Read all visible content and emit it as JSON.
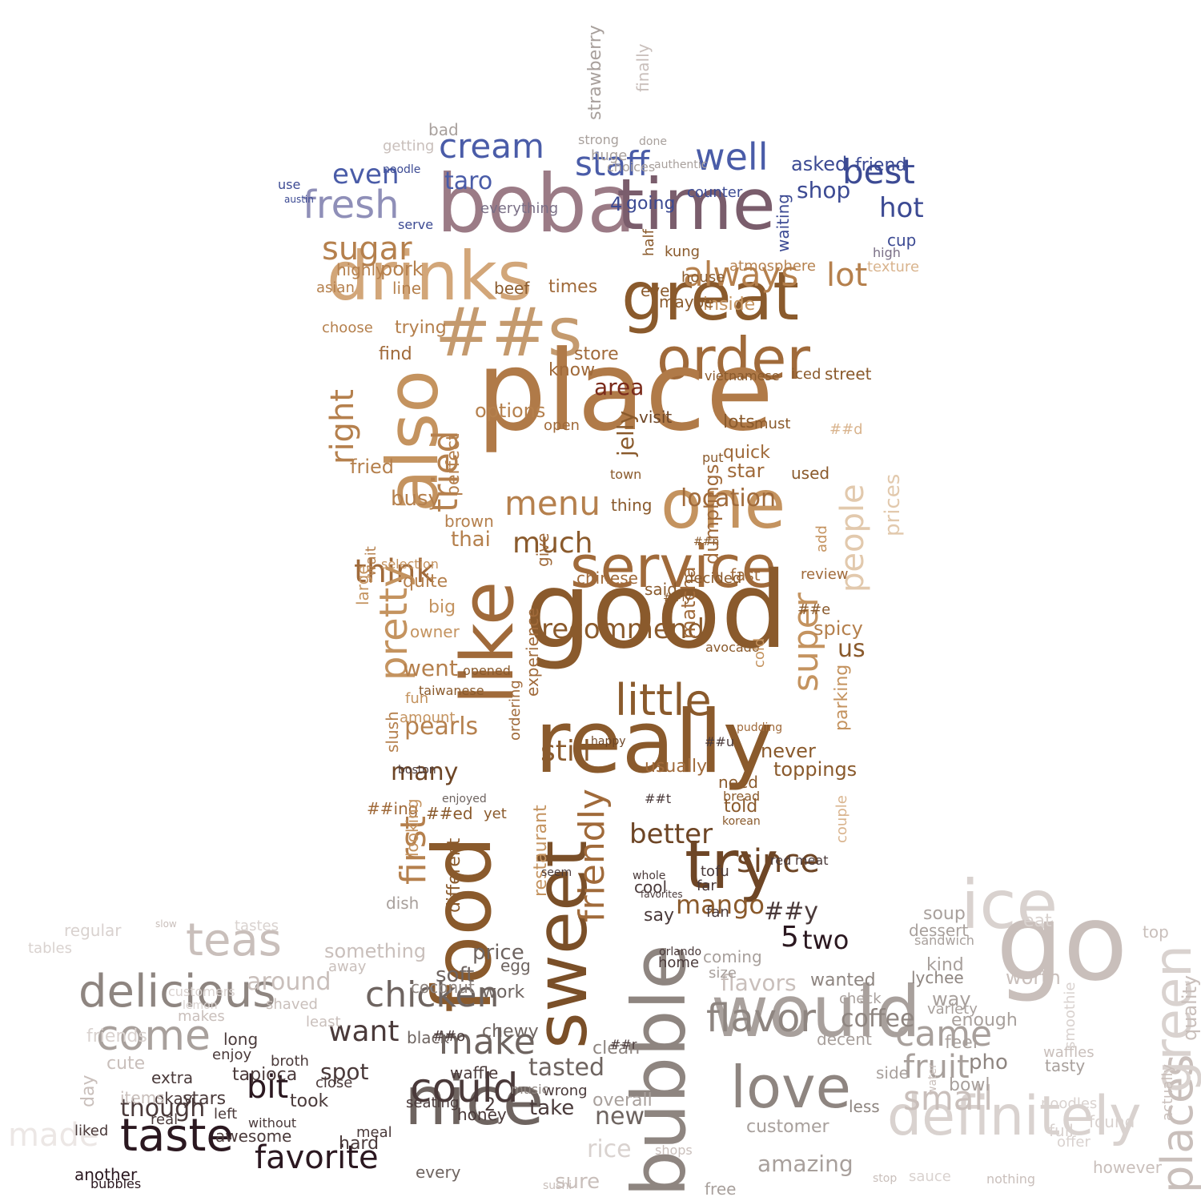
{
  "cloud": {
    "title": "",
    "palette": {
      "lid": "#3c4a93",
      "lid_light": "#8fa0d8",
      "cup_dark": "#8a5a2c",
      "cup_mid": "#b5804d",
      "cup_light": "#d9b48e",
      "saucer_dark": "#2b1820",
      "saucer_mid": "#8e8580",
      "saucer_light": "#d9d2cf",
      "accent_maroon": "#7a2a1a",
      "boba_purple": "#9b7b86"
    },
    "words": [
      {
        "t": "boba",
        "c": "#9b7b86"
      },
      {
        "t": "time",
        "c": "#7a5d6c"
      },
      {
        "t": "cream",
        "c": "#4a5ca8"
      },
      {
        "t": "even",
        "c": "#4a5ca8"
      },
      {
        "t": "taro",
        "c": "#4a5ca8"
      },
      {
        "t": "staff",
        "c": "#4a5ca8"
      },
      {
        "t": "well",
        "c": "#4a5ca8"
      },
      {
        "t": "best",
        "c": "#3c4a93"
      },
      {
        "t": "shop",
        "c": "#3c4a93"
      },
      {
        "t": "hot",
        "c": "#3c4a93"
      },
      {
        "t": "fresh",
        "c": "#8f8fb8"
      },
      {
        "t": "asked",
        "c": "#3c4a93"
      },
      {
        "t": "friend",
        "c": "#3c4a93"
      },
      {
        "t": "going",
        "c": "#3c4a93"
      },
      {
        "t": "counter",
        "c": "#3c4a93"
      },
      {
        "t": "serve",
        "c": "#3c4a93"
      },
      {
        "t": "use",
        "c": "#3c4a93"
      },
      {
        "t": "austin",
        "c": "#3c4a93"
      },
      {
        "t": "noodle",
        "c": "#3c4a93"
      },
      {
        "t": "everything",
        "c": "#7a6f86"
      },
      {
        "t": "drinks",
        "c": "#d2a679"
      },
      {
        "t": "great",
        "c": "#8a5a2c"
      },
      {
        "t": "sugar",
        "c": "#b5804d"
      },
      {
        "t": "always",
        "c": "#b5804d"
      },
      {
        "t": "lot",
        "c": "#b5804d"
      },
      {
        "t": "##s",
        "c": "#c49a6e"
      },
      {
        "t": "order",
        "c": "#a06a3a"
      },
      {
        "t": "also",
        "c": "#c4935f"
      },
      {
        "t": "place",
        "c": "#b07a48"
      },
      {
        "t": "area",
        "c": "#7a2a1a"
      },
      {
        "t": "tried",
        "c": "#b5804d"
      },
      {
        "t": "right",
        "c": "#b5804d"
      },
      {
        "t": "menu",
        "c": "#b5804d"
      },
      {
        "t": "much",
        "c": "#8a5a2c"
      },
      {
        "t": "one",
        "c": "#c4935f"
      },
      {
        "t": "people",
        "c": "#e2c9ad"
      },
      {
        "t": "location",
        "c": "#a06a3a"
      },
      {
        "t": "think",
        "c": "#a06a3a"
      },
      {
        "t": "service",
        "c": "#a06a3a"
      },
      {
        "t": "pretty",
        "c": "#c4935f"
      },
      {
        "t": "like",
        "c": "#a06a3a"
      },
      {
        "t": "recommend",
        "c": "#8a5a2c"
      },
      {
        "t": "good",
        "c": "#8a5a2c"
      },
      {
        "t": "super",
        "c": "#c4935f"
      },
      {
        "t": "went",
        "c": "#b5804d"
      },
      {
        "t": "pearls",
        "c": "#b5804d"
      },
      {
        "t": "little",
        "c": "#8a5a2c"
      },
      {
        "t": "still",
        "c": "#8a5a2c"
      },
      {
        "t": "really",
        "c": "#8a5a2c"
      },
      {
        "t": "food",
        "c": "#8a5a2c"
      },
      {
        "t": "sweet",
        "c": "#7a4f28"
      },
      {
        "t": "try",
        "c": "#6e4626"
      },
      {
        "t": "since",
        "c": "#6e4626"
      },
      {
        "t": "better",
        "c": "#6e4626"
      },
      {
        "t": "first",
        "c": "#b5804d"
      },
      {
        "t": "friendly",
        "c": "#a06a3a"
      },
      {
        "t": "bubble",
        "c": "#8e8580"
      },
      {
        "t": "ice",
        "c": "#d9d2cf"
      },
      {
        "t": "go",
        "c": "#c9bfbb"
      },
      {
        "t": "would",
        "c": "#a8a09c"
      },
      {
        "t": "love",
        "c": "#8e8580"
      },
      {
        "t": "delicious",
        "c": "#8e8580"
      },
      {
        "t": "chicken",
        "c": "#6e6460"
      },
      {
        "t": "come",
        "c": "#a8a09c"
      },
      {
        "t": "teas",
        "c": "#c9bfbb"
      },
      {
        "t": "around",
        "c": "#c9bfbb"
      },
      {
        "t": "make",
        "c": "#6e6460"
      },
      {
        "t": "nice",
        "c": "#6e6460"
      },
      {
        "t": "could",
        "c": "#4a3a3a"
      },
      {
        "t": "want",
        "c": "#4a3a3a"
      },
      {
        "t": "taste",
        "c": "#2b1820"
      },
      {
        "t": "favorite",
        "c": "#2b1820"
      },
      {
        "t": "bit",
        "c": "#2b1820"
      },
      {
        "t": "definitely",
        "c": "#d9d2cf"
      },
      {
        "t": "places",
        "c": "#c9bfbb"
      },
      {
        "t": "small",
        "c": "#c9bfbb"
      },
      {
        "t": "came",
        "c": "#a8a09c"
      },
      {
        "t": "fruit",
        "c": "#a8a09c"
      },
      {
        "t": "green",
        "c": "#d9d2cf"
      },
      {
        "t": "flavor",
        "c": "#8e8580"
      },
      {
        "t": "coffee",
        "c": "#8e8580"
      },
      {
        "t": "mango",
        "c": "#8a5a2c"
      },
      {
        "t": "5",
        "c": "#2b1820"
      },
      {
        "t": "two",
        "c": "#2b1820"
      },
      {
        "t": "##y",
        "c": "#4a3a3a"
      },
      {
        "t": "new",
        "c": "#6e6460"
      },
      {
        "t": "price",
        "c": "#6e6460"
      },
      {
        "t": "soft",
        "c": "#6e6460"
      },
      {
        "t": "spot",
        "c": "#4a3a3a"
      },
      {
        "t": "tasted",
        "c": "#6e6460"
      },
      {
        "t": "though",
        "c": "#4a3a3a"
      },
      {
        "t": "stars",
        "c": "#4a3a3a"
      },
      {
        "t": "made",
        "c": "#ece7e5"
      },
      {
        "t": "amazing",
        "c": "#a8a09c"
      },
      {
        "t": "customer",
        "c": "#a8a09c"
      },
      {
        "t": "flavors",
        "c": "#c9bfbb"
      },
      {
        "t": "something",
        "c": "#c9bfbb"
      },
      {
        "t": "tapioca",
        "c": "#4a3a3a"
      },
      {
        "t": "take",
        "c": "#4a3a3a"
      },
      {
        "t": "wanted",
        "c": "#8e8580"
      },
      {
        "t": "worth",
        "c": "#c9bfbb"
      },
      {
        "t": "enough",
        "c": "#a8a09c"
      },
      {
        "t": "feel",
        "c": "#a8a09c"
      },
      {
        "t": "pho",
        "c": "#8e8580"
      },
      {
        "t": "quality",
        "c": "#c9bfbb"
      },
      {
        "t": "thai",
        "c": "#b5804d"
      },
      {
        "t": "pork",
        "c": "#b5804d"
      },
      {
        "t": "fried",
        "c": "#b5804d"
      },
      {
        "t": "busy",
        "c": "#b5804d"
      },
      {
        "t": "jelly",
        "c": "#8a5a2c"
      },
      {
        "t": "star",
        "c": "#a06a3a"
      },
      {
        "t": "quick",
        "c": "#a06a3a"
      },
      {
        "t": "prices",
        "c": "#e2c9ad"
      },
      {
        "t": "options",
        "c": "#b5804d"
      },
      {
        "t": "dumplings",
        "c": "#a06a3a"
      },
      {
        "t": "matcha",
        "c": "#a06a3a"
      },
      {
        "t": "spicy",
        "c": "#b5804d"
      },
      {
        "t": "us",
        "c": "#8a5a2c"
      },
      {
        "t": "parking",
        "c": "#c4935f"
      },
      {
        "t": "toppings",
        "c": "#8a5a2c"
      },
      {
        "t": "never",
        "c": "#8a5a2c"
      },
      {
        "t": "many",
        "c": "#6e4626"
      },
      {
        "t": "told",
        "c": "#8a5a2c"
      },
      {
        "t": "need",
        "c": "#8a5a2c"
      },
      {
        "t": "usually",
        "c": "#a06a3a"
      },
      {
        "t": "chinese",
        "c": "#a06a3a"
      },
      {
        "t": "fast",
        "c": "#a06a3a"
      },
      {
        "t": "review",
        "c": "#a06a3a"
      },
      {
        "t": "times",
        "c": "#a06a3a"
      },
      {
        "t": "find",
        "c": "#a06a3a"
      },
      {
        "t": "know",
        "c": "#a06a3a"
      },
      {
        "t": "store",
        "c": "#a06a3a"
      },
      {
        "t": "beef",
        "c": "#8a5a2c"
      },
      {
        "t": "line",
        "c": "#b5804d"
      },
      {
        "t": "trying",
        "c": "#b5804d"
      },
      {
        "t": "highly",
        "c": "#b5804d"
      },
      {
        "t": "choose",
        "c": "#b5804d"
      },
      {
        "t": "inside",
        "c": "#c4935f"
      },
      {
        "t": "maybe",
        "c": "#8a5a2c"
      },
      {
        "t": "said",
        "c": "#8a5a2c"
      },
      {
        "t": "quite",
        "c": "#b5804d"
      },
      {
        "t": "big",
        "c": "#c4935f"
      },
      {
        "t": "owner",
        "c": "#c4935f"
      },
      {
        "t": "fun",
        "c": "#c4935f"
      },
      {
        "t": "amount",
        "c": "#c4935f"
      },
      {
        "t": "brown",
        "c": "#b5804d"
      },
      {
        "t": "used",
        "c": "#8a5a2c"
      },
      {
        "t": "visit",
        "c": "#6e4626"
      },
      {
        "t": "ever",
        "c": "#8a5a2c"
      },
      {
        "t": "house",
        "c": "#8a5a2c"
      },
      {
        "t": "atmosphere",
        "c": "#b5804d"
      },
      {
        "t": "texture",
        "c": "#d9b48e"
      },
      {
        "t": "cup",
        "c": "#3c4a93"
      },
      {
        "t": "high",
        "c": "#7a6f86"
      },
      {
        "t": "kung",
        "c": "#8a5a2c"
      },
      {
        "t": "bad",
        "c": "#a8a09c"
      },
      {
        "t": "getting",
        "c": "#c9bfbb"
      },
      {
        "t": "huge",
        "c": "#a8a09c"
      },
      {
        "t": "choices",
        "c": "#a8a09c"
      },
      {
        "t": "authentic",
        "c": "#a8a09c"
      },
      {
        "t": "strawberry",
        "c": "#a8a09c"
      },
      {
        "t": "finally",
        "c": "#c9bfbb"
      },
      {
        "t": "strong",
        "c": "#a8a09c"
      },
      {
        "t": "done",
        "c": "#a8a09c"
      },
      {
        "t": "tofu",
        "c": "#4a3a3a"
      },
      {
        "t": "far",
        "c": "#4a3a3a"
      },
      {
        "t": "cool",
        "c": "#4a3a3a"
      },
      {
        "t": "say",
        "c": "#4a3a3a"
      },
      {
        "t": "fan",
        "c": "#4a3a3a"
      },
      {
        "t": "hard",
        "c": "#4a3a3a"
      },
      {
        "t": "left",
        "c": "#4a3a3a"
      },
      {
        "t": "took",
        "c": "#4a3a3a"
      },
      {
        "t": "okay",
        "c": "#4a3a3a"
      },
      {
        "t": "extra",
        "c": "#4a3a3a"
      },
      {
        "t": "another",
        "c": "#2b1820"
      },
      {
        "t": "bubbles",
        "c": "#2b1820"
      },
      {
        "t": "awesome",
        "c": "#4a3a3a"
      },
      {
        "t": "every",
        "c": "#6e6460"
      },
      {
        "t": "sure",
        "c": "#c9bfbb"
      },
      {
        "t": "rice",
        "c": "#d9d2cf"
      },
      {
        "t": "overall",
        "c": "#a8a09c"
      },
      {
        "t": "free",
        "c": "#a8a09c"
      },
      {
        "t": "soup",
        "c": "#a8a09c"
      },
      {
        "t": "dessert",
        "c": "#a8a09c"
      },
      {
        "t": "lychee",
        "c": "#8e8580"
      },
      {
        "t": "kind",
        "c": "#a8a09c"
      },
      {
        "t": "way",
        "c": "#a8a09c"
      },
      {
        "t": "less",
        "c": "#8e8580"
      },
      {
        "t": "bowl",
        "c": "#a8a09c"
      },
      {
        "t": "tasty",
        "c": "#a8a09c"
      },
      {
        "t": "side",
        "c": "#a8a09c"
      },
      {
        "t": "check",
        "c": "#a8a09c"
      },
      {
        "t": "decent",
        "c": "#a8a09c"
      },
      {
        "t": "waffle",
        "c": "#4a3a3a"
      },
      {
        "t": "honey",
        "c": "#4a3a3a"
      },
      {
        "t": "black",
        "c": "#6e6460"
      },
      {
        "t": "chewy",
        "c": "#6e6460"
      },
      {
        "t": "work",
        "c": "#6e6460"
      },
      {
        "t": "coconut",
        "c": "#8e8580"
      },
      {
        "t": "clean",
        "c": "#8e8580"
      },
      {
        "t": "seating",
        "c": "#4a3a3a"
      },
      {
        "t": "close",
        "c": "#4a3a3a"
      },
      {
        "t": "broth",
        "c": "#4a3a3a"
      },
      {
        "t": "long",
        "c": "#4a3a3a"
      },
      {
        "t": "enjoy",
        "c": "#4a3a3a"
      },
      {
        "t": "cute",
        "c": "#c9bfbb"
      },
      {
        "t": "friends",
        "c": "#d9d2cf"
      },
      {
        "t": "day",
        "c": "#c9bfbb"
      },
      {
        "t": "items",
        "c": "#c9bfbb"
      },
      {
        "t": "regular",
        "c": "#d9d2cf"
      },
      {
        "t": "tables",
        "c": "#d9d2cf"
      },
      {
        "t": "customers",
        "c": "#d9d2cf"
      },
      {
        "t": "tastes",
        "c": "#d9d2cf"
      },
      {
        "t": "wrong",
        "c": "#4a3a3a"
      },
      {
        "t": "coming",
        "c": "#a8a09c"
      },
      {
        "t": "size",
        "c": "#a8a09c"
      },
      {
        "t": "home",
        "c": "#4a3a3a"
      },
      {
        "t": "orlando",
        "c": "#4a3a3a"
      },
      {
        "t": "boston",
        "c": "#4a3a3a"
      },
      {
        "t": "enjoyed",
        "c": "#6e6460"
      },
      {
        "t": "##ed",
        "c": "#8a5a2c"
      },
      {
        "t": "##ing",
        "c": "#a06a3a"
      },
      {
        "t": "yet",
        "c": "#8a5a2c"
      },
      {
        "t": "looking",
        "c": "#c4935f"
      },
      {
        "t": "restaurant",
        "c": "#c4935f"
      },
      {
        "t": "different",
        "c": "#8a5a2c"
      },
      {
        "t": "open",
        "c": "#a06a3a"
      },
      {
        "t": "perfect",
        "c": "#b5804d"
      },
      {
        "t": "ordering",
        "c": "#a06a3a"
      },
      {
        "t": "experience",
        "c": "#a06a3a"
      },
      {
        "t": "give",
        "c": "#a06a3a"
      },
      {
        "t": "##d",
        "c": "#d9b48e"
      },
      {
        "t": "lots",
        "c": "#8a5a2c"
      },
      {
        "t": "must",
        "c": "#8a5a2c"
      },
      {
        "t": "street",
        "c": "#8a5a2c"
      },
      {
        "t": "iced",
        "c": "#8a5a2c"
      },
      {
        "t": "vietnamese",
        "c": "#8a5a2c"
      },
      {
        "t": "add",
        "c": "#c4935f"
      },
      {
        "t": "decided",
        "c": "#8a5a2c"
      },
      {
        "t": "thing",
        "c": "#8a5a2c"
      },
      {
        "t": "town",
        "c": "#8a5a2c"
      },
      {
        "t": "put",
        "c": "#8a5a2c"
      },
      {
        "t": "waiting",
        "c": "#3c4a93"
      },
      {
        "t": "half",
        "c": "#8a5a2c"
      },
      {
        "t": "4",
        "c": "#3c4a93"
      },
      {
        "t": "##e",
        "c": "#8a5a2c"
      },
      {
        "t": "##ly",
        "c": "#8a5a2c"
      },
      {
        "t": "##o",
        "c": "#4a3a3a"
      },
      {
        "t": "##r",
        "c": "#4a3a3a"
      },
      {
        "t": "##t",
        "c": "#4a3a3a"
      },
      {
        "t": "##u",
        "c": "#4a3a3a"
      },
      {
        "t": "##n",
        "c": "#8a5a2c"
      },
      {
        "t": "red",
        "c": "#4a3a3a"
      },
      {
        "t": "meat",
        "c": "#4a3a3a"
      },
      {
        "t": "3",
        "c": "#a8a09c"
      },
      {
        "t": "2",
        "c": "#4a3a3a"
      },
      {
        "t": "slow",
        "c": "#c9bfbb"
      },
      {
        "t": "top",
        "c": "#c9bfbb"
      },
      {
        "t": "eat",
        "c": "#d9d2cf"
      },
      {
        "t": "waffles",
        "c": "#c9bfbb"
      },
      {
        "t": "smoothie",
        "c": "#d9d2cf"
      },
      {
        "t": "noodles",
        "c": "#d9d2cf"
      },
      {
        "t": "found",
        "c": "#d9d2cf"
      },
      {
        "t": "actually",
        "c": "#c9bfbb"
      },
      {
        "t": "water",
        "c": "#c9bfbb"
      },
      {
        "t": "however",
        "c": "#c9bfbb"
      },
      {
        "t": "stop",
        "c": "#c9bfbb"
      },
      {
        "t": "sauce",
        "c": "#d9d2cf"
      },
      {
        "t": "nothing",
        "c": "#c9bfbb"
      },
      {
        "t": "full",
        "c": "#d9d2cf"
      },
      {
        "t": "offer",
        "c": "#d9d2cf"
      },
      {
        "t": "sushi",
        "c": "#c9bfbb"
      },
      {
        "t": "shops",
        "c": "#c9bfbb"
      },
      {
        "t": "variety",
        "c": "#a8a09c"
      },
      {
        "t": "sandwich",
        "c": "#a8a09c"
      },
      {
        "t": "shaved",
        "c": "#c9bfbb"
      },
      {
        "t": "lemon",
        "c": "#d9d2cf"
      },
      {
        "t": "makes",
        "c": "#c9bfbb"
      },
      {
        "t": "away",
        "c": "#c9bfbb"
      },
      {
        "t": "least",
        "c": "#c9bfbb"
      },
      {
        "t": "egg",
        "c": "#6e6460"
      },
      {
        "t": "real",
        "c": "#4a3a3a"
      },
      {
        "t": "liked",
        "c": "#4a3a3a"
      },
      {
        "t": "meal",
        "c": "#4a3a3a"
      },
      {
        "t": "music",
        "c": "#8e8580"
      },
      {
        "t": "without",
        "c": "#4a3a3a"
      },
      {
        "t": "dish",
        "c": "#a8a09c"
      },
      {
        "t": "avocado",
        "c": "#8a5a2c"
      },
      {
        "t": "cold",
        "c": "#c4935f"
      },
      {
        "t": "happy",
        "c": "#6e4626"
      },
      {
        "t": "pudding",
        "c": "#a06a3a"
      },
      {
        "t": "korean",
        "c": "#8a5a2c"
      },
      {
        "t": "bread",
        "c": "#8a5a2c"
      },
      {
        "t": "couple",
        "c": "#d9b48e"
      },
      {
        "t": "taiwanese",
        "c": "#8a5a2c"
      },
      {
        "t": "opened",
        "c": "#8a5a2c"
      },
      {
        "t": "selection",
        "c": "#c4935f"
      },
      {
        "t": "large",
        "c": "#c4935f"
      },
      {
        "t": "asian",
        "c": "#b5804d"
      },
      {
        "t": "slush",
        "c": "#b5804d"
      },
      {
        "t": "wait",
        "c": "#b5804d"
      },
      {
        "t": "whole",
        "c": "#4a3a3a"
      },
      {
        "t": "seem",
        "c": "#4a3a3a"
      },
      {
        "t": "favorites",
        "c": "#4a3a3a"
      }
    ]
  }
}
